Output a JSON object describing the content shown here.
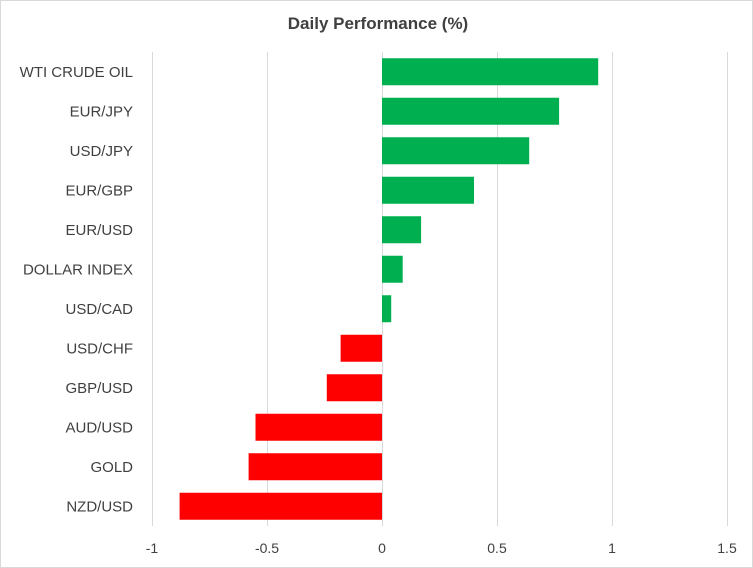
{
  "chart_data": {
    "type": "bar",
    "orientation": "horizontal",
    "title": "Daily Performance (%)",
    "xlabel": "",
    "ylabel": "",
    "categories": [
      "WTI CRUDE OIL",
      "EUR/JPY",
      "USD/JPY",
      "EUR/GBP",
      "EUR/USD",
      "DOLLAR INDEX",
      "USD/CAD",
      "USD/CHF",
      "GBP/USD",
      "AUD/USD",
      "GOLD",
      "NZD/USD"
    ],
    "values": [
      0.94,
      0.77,
      0.64,
      0.4,
      0.17,
      0.09,
      0.04,
      -0.18,
      -0.24,
      -0.55,
      -0.58,
      -0.88
    ],
    "xlim": [
      -1,
      1.5
    ],
    "xticks": [
      -1,
      -0.5,
      0,
      0.5,
      1,
      1.5
    ],
    "tick_labels": [
      "-1",
      "-0.5",
      "0",
      "0.5",
      "1",
      "1.5"
    ],
    "grid": true,
    "legend": "none",
    "colors": {
      "positive": "#00b050",
      "negative": "#ff0000",
      "text": "#404040",
      "grid": "#d9d9d9"
    }
  }
}
